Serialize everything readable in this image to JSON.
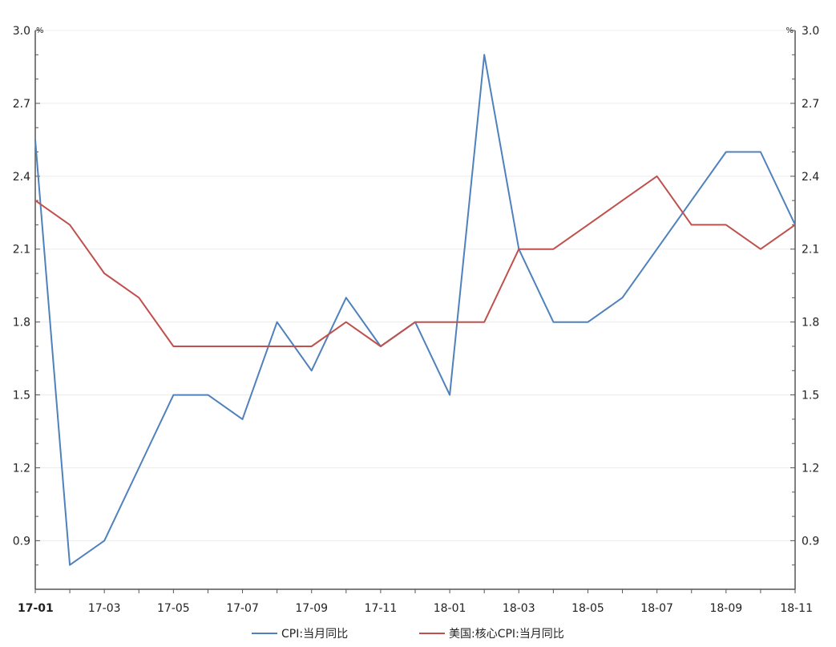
{
  "chart_data": {
    "type": "line",
    "title": "",
    "x": [
      "17-01",
      "17-02",
      "17-03",
      "17-04",
      "17-05",
      "17-06",
      "17-07",
      "17-08",
      "17-09",
      "17-10",
      "17-11",
      "17-12",
      "18-01",
      "18-02",
      "18-03",
      "18-04",
      "18-05",
      "18-06",
      "18-07",
      "18-08",
      "18-09",
      "18-10",
      "18-11"
    ],
    "x_tick_labels": [
      "17-01",
      "17-03",
      "17-05",
      "17-07",
      "17-09",
      "17-11",
      "18-01",
      "18-03",
      "18-05",
      "18-07",
      "18-09",
      "18-11"
    ],
    "series": [
      {
        "name": "CPI:当月同比",
        "color": "#4f81bd",
        "values": [
          2.55,
          0.8,
          0.9,
          1.2,
          1.5,
          1.5,
          1.4,
          1.8,
          1.6,
          1.9,
          1.7,
          1.8,
          1.5,
          2.9,
          2.1,
          1.8,
          1.8,
          1.9,
          2.1,
          2.3,
          2.5,
          2.5,
          2.2
        ]
      },
      {
        "name": "美国:核心CPI:当月同比",
        "color": "#c0504d",
        "values": [
          2.3,
          2.2,
          2.0,
          1.9,
          1.7,
          1.7,
          1.7,
          1.7,
          1.7,
          1.8,
          1.7,
          1.8,
          1.8,
          1.8,
          2.1,
          2.1,
          2.2,
          2.3,
          2.4,
          2.2,
          2.2,
          2.1,
          2.2
        ]
      }
    ],
    "y_left": {
      "unit": "%",
      "ylim": [
        0.7,
        3.0
      ],
      "ticks": [
        "0.9",
        "1.2",
        "1.5",
        "1.8",
        "2.1",
        "2.4",
        "2.7",
        "3.0"
      ]
    },
    "y_right": {
      "unit": "%",
      "ylim": [
        0.7,
        3.0
      ],
      "ticks": [
        "0.9",
        "1.2",
        "1.5",
        "1.8",
        "2.1",
        "2.4",
        "2.7",
        "3.0"
      ]
    },
    "grid": "horizontal",
    "legend_position": "bottom-center"
  }
}
